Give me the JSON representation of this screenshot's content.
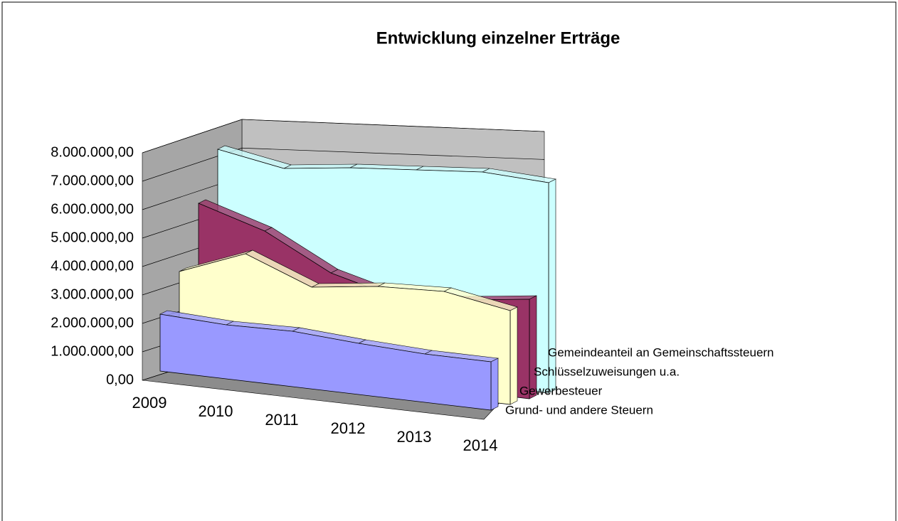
{
  "chart_data": {
    "type": "area3d",
    "title": "Entwicklung einzelner Erträge",
    "categories": [
      "2009",
      "2010",
      "2011",
      "2012",
      "2013",
      "2014"
    ],
    "series": [
      {
        "name": "Grund- und andere Steuern",
        "color": "#9999ff",
        "values": [
          2000000,
          1900000,
          1950000,
          1800000,
          1700000,
          1700000
        ]
      },
      {
        "name": "Gewerbesteuer",
        "color": "#ffffcc",
        "values": [
          3300000,
          4200000,
          3300000,
          3600000,
          3700000,
          3300000
        ]
      },
      {
        "name": "Schlüsselzuweisungen u.a.",
        "color": "#993366",
        "values": [
          5500000,
          4800000,
          3600000,
          3000000,
          3200000,
          3500000
        ]
      },
      {
        "name": "Gemeindeanteil an Gemeinschaftssteuern",
        "color": "#ccffff",
        "values": [
          7200000,
          6800000,
          7100000,
          7300000,
          7500000,
          7400000
        ]
      }
    ],
    "ylim": [
      0,
      8000000
    ],
    "yticks": [
      {
        "value": 0,
        "label": "0,00"
      },
      {
        "value": 1000000,
        "label": "1.000.000,00"
      },
      {
        "value": 2000000,
        "label": "2.000.000,00"
      },
      {
        "value": 3000000,
        "label": "3.000.000,00"
      },
      {
        "value": 4000000,
        "label": "4.000.000,00"
      },
      {
        "value": 5000000,
        "label": "5.000.000,00"
      },
      {
        "value": 6000000,
        "label": "6.000.000,00"
      },
      {
        "value": 7000000,
        "label": "7.000.000,00"
      },
      {
        "value": 8000000,
        "label": "8.000.000,00"
      }
    ],
    "grid": true
  }
}
